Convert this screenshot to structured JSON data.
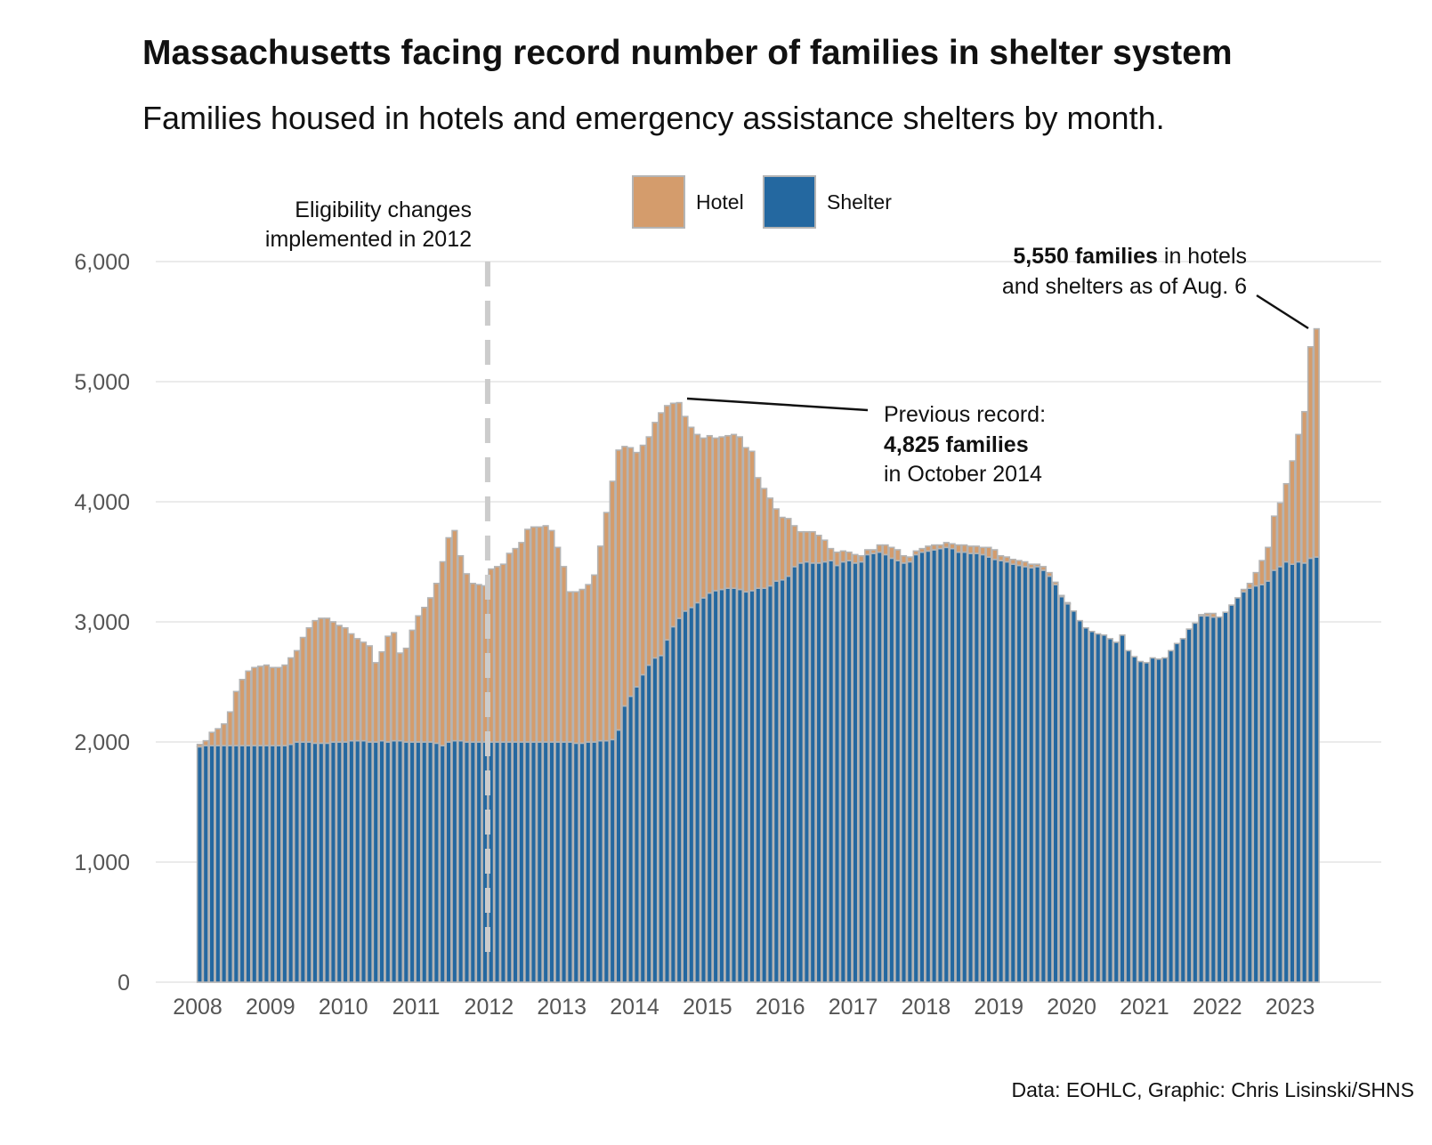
{
  "title": "Massachusetts facing record number of families in shelter system",
  "subtitle": "Families housed in hotels and emergency assistance shelters by month.",
  "caption": "Data: EOHLC, Graphic: Chris Lisinski/SHNS",
  "colors": {
    "hotel": "#d49c6c",
    "shelter": "#2468a0",
    "bar_outline": "#b4b4b4",
    "grid": "#ebebeb",
    "dashed_line": "#cccccc"
  },
  "annotations": {
    "eligibility": [
      "Eligibility changes",
      "implemented in 2012"
    ],
    "previous_record": {
      "line1": "Previous record:",
      "bold": "4,825 families",
      "line3": "in October 2014"
    },
    "current": {
      "bold": "5,550 families",
      "rest1": " in hotels",
      "line2": "and shelters as of Aug. 6"
    }
  },
  "chart_data": {
    "type": "bar",
    "stacked": true,
    "start_month": "2008-01",
    "frequency": "monthly",
    "x_ticks": [
      "2008",
      "2009",
      "2010",
      "2011",
      "2012",
      "2013",
      "2014",
      "2015",
      "2016",
      "2017",
      "2018",
      "2019",
      "2020",
      "2021",
      "2022",
      "2023"
    ],
    "y_ticks": [
      "0",
      "1,000",
      "2,000",
      "3,000",
      "4,000",
      "5,000",
      "6,000"
    ],
    "ylim": [
      0,
      6000
    ],
    "grid": true,
    "legend": {
      "position": "top",
      "entries": [
        "Hotel",
        "Shelter"
      ]
    },
    "vertical_marker": {
      "x": "2012-01",
      "style": "dashed"
    },
    "series": [
      {
        "name": "Shelter",
        "values": [
          1960,
          1970,
          1970,
          1970,
          1970,
          1970,
          1970,
          1970,
          1970,
          1970,
          1970,
          1970,
          1970,
          1970,
          1970,
          1980,
          2000,
          2000,
          2000,
          1990,
          1990,
          1990,
          2000,
          2000,
          2000,
          2010,
          2010,
          2010,
          2000,
          2000,
          2010,
          2000,
          2010,
          2010,
          2000,
          2000,
          2000,
          2000,
          2000,
          1990,
          1970,
          2000,
          2010,
          2010,
          2000,
          2000,
          2000,
          2000,
          2000,
          2000,
          2000,
          2000,
          2000,
          2000,
          2000,
          2000,
          2000,
          2000,
          2000,
          2000,
          2000,
          2000,
          1990,
          1990,
          2000,
          2000,
          2010,
          2010,
          2020,
          2100,
          2300,
          2380,
          2460,
          2560,
          2640,
          2700,
          2720,
          2850,
          2960,
          3030,
          3090,
          3120,
          3160,
          3200,
          3240,
          3260,
          3270,
          3280,
          3280,
          3270,
          3250,
          3260,
          3280,
          3280,
          3300,
          3340,
          3350,
          3380,
          3460,
          3490,
          3500,
          3490,
          3490,
          3500,
          3510,
          3470,
          3500,
          3510,
          3490,
          3500,
          3560,
          3570,
          3580,
          3560,
          3530,
          3510,
          3490,
          3500,
          3560,
          3580,
          3590,
          3600,
          3610,
          3620,
          3610,
          3580,
          3580,
          3570,
          3570,
          3560,
          3540,
          3520,
          3510,
          3500,
          3480,
          3470,
          3460,
          3450,
          3460,
          3430,
          3380,
          3310,
          3210,
          3150,
          3090,
          3010,
          2950,
          2920,
          2900,
          2890,
          2860,
          2830,
          2890,
          2760,
          2710,
          2670,
          2660,
          2700,
          2690,
          2700,
          2760,
          2820,
          2860,
          2940,
          2990,
          3050,
          3050,
          3040,
          3040,
          3080,
          3140,
          3200,
          3250,
          3280,
          3300,
          3310,
          3340,
          3430,
          3460,
          3500,
          3480,
          3500,
          3490,
          3530,
          3540
        ]
      },
      {
        "name": "Hotel",
        "values": [
          20,
          40,
          110,
          140,
          180,
          280,
          450,
          550,
          620,
          650,
          660,
          670,
          650,
          650,
          670,
          720,
          760,
          870,
          950,
          1020,
          1040,
          1040,
          1000,
          970,
          950,
          890,
          850,
          820,
          800,
          660,
          740,
          880,
          900,
          730,
          780,
          930,
          1050,
          1120,
          1200,
          1330,
          1530,
          1700,
          1750,
          1540,
          1400,
          1320,
          1310,
          1300,
          1440,
          1460,
          1480,
          1570,
          1610,
          1660,
          1770,
          1790,
          1790,
          1800,
          1760,
          1620,
          1460,
          1250,
          1260,
          1280,
          1310,
          1390,
          1620,
          1900,
          2150,
          2330,
          2160,
          2070,
          1950,
          1910,
          1900,
          1960,
          2020,
          1950,
          1860,
          1795,
          1620,
          1500,
          1400,
          1330,
          1310,
          1270,
          1270,
          1270,
          1280,
          1270,
          1200,
          1160,
          920,
          830,
          730,
          600,
          520,
          480,
          340,
          260,
          250,
          260,
          230,
          180,
          100,
          110,
          90,
          70,
          70,
          50,
          40,
          30,
          60,
          80,
          90,
          90,
          60,
          40,
          30,
          30,
          40,
          40,
          30,
          40,
          40,
          60,
          60,
          60,
          60,
          60,
          80,
          80,
          40,
          40,
          40,
          40,
          40,
          30,
          20,
          30,
          30,
          20,
          10,
          10,
          0,
          0,
          0,
          0,
          0,
          0,
          0,
          0,
          0,
          0,
          0,
          0,
          0,
          0,
          0,
          0,
          0,
          0,
          0,
          0,
          0,
          10,
          20,
          30,
          0,
          0,
          0,
          0,
          20,
          40,
          110,
          200,
          280,
          450,
          530,
          650,
          860,
          1060,
          1260,
          1760,
          1900
        ]
      }
    ]
  }
}
